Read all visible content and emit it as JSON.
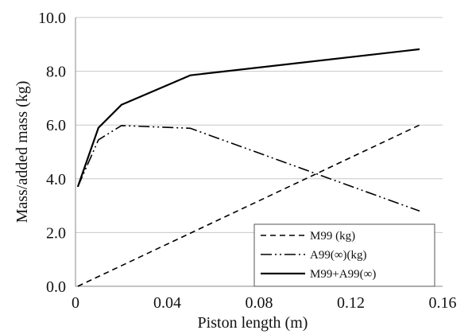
{
  "chart_data": {
    "type": "line",
    "xlabel": "Piston length (m)",
    "ylabel": "Mass/added mass (kg)",
    "xlim": [
      0,
      0.16
    ],
    "ylim": [
      0,
      10
    ],
    "x_ticks": [
      "0",
      "0.04",
      "0.08",
      "0.12",
      "0.16"
    ],
    "y_ticks": [
      "0.0",
      "2.0",
      "4.0",
      "6.0",
      "8.0",
      "10.0"
    ],
    "grid": "horizontal",
    "legend_position": "bottom-right",
    "series": [
      {
        "name": "M99 (kg)",
        "style": "dashed",
        "color": "#000000",
        "x": [
          0.001,
          0.15
        ],
        "y": [
          0.0,
          6.0
        ]
      },
      {
        "name": "A99(∞)(kg)",
        "style": "dash-dot-dot",
        "color": "#000000",
        "x": [
          0.001,
          0.01,
          0.02,
          0.05,
          0.15
        ],
        "y": [
          3.7,
          5.45,
          5.98,
          5.88,
          2.8
        ]
      },
      {
        "name": "M99+A99(∞)",
        "style": "solid",
        "color": "#000000",
        "x": [
          0.001,
          0.01,
          0.02,
          0.05,
          0.15
        ],
        "y": [
          3.7,
          5.9,
          6.75,
          7.85,
          8.82
        ]
      }
    ]
  }
}
